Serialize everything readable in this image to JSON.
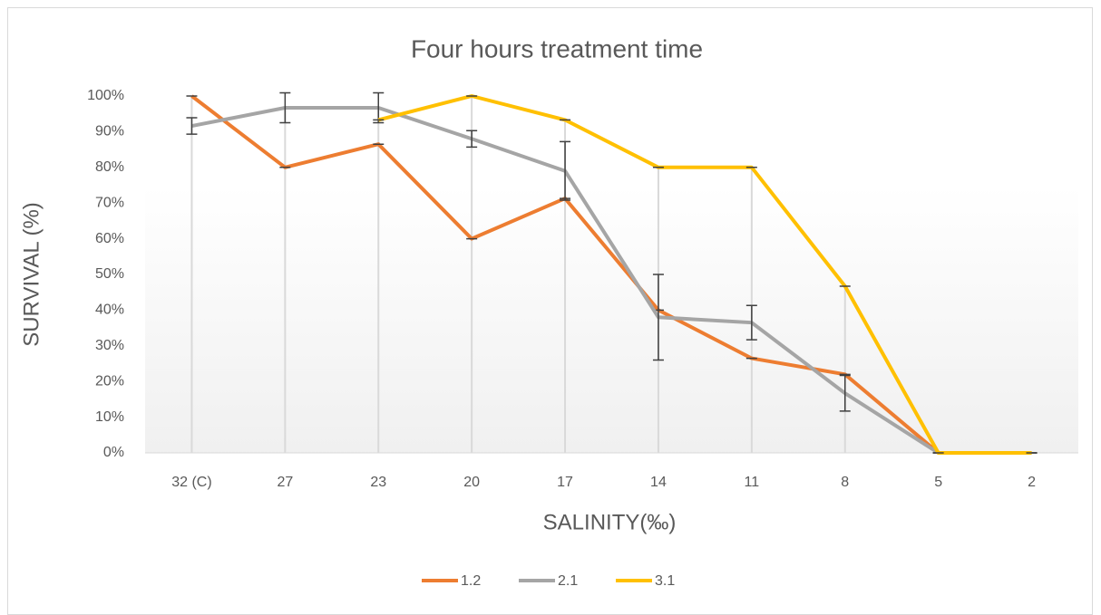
{
  "chart_data": {
    "type": "line",
    "title": "Four hours treatment time",
    "x_label": "SALINITY(‰)",
    "y_label": "SURVIVAL (%)",
    "categories": [
      "32 (C)",
      "27",
      "23",
      "20",
      "17",
      "14",
      "11",
      "8",
      "5",
      "2"
    ],
    "series": [
      {
        "name": "1.2",
        "color": "#ED7D31",
        "values": [
          100,
          80,
          86.5,
          60,
          71.3,
          40,
          26.5,
          22,
          0,
          0
        ],
        "errors": [
          0,
          0,
          0,
          0,
          0,
          0,
          0,
          0,
          0,
          0
        ]
      },
      {
        "name": "2.1",
        "color": "#A5A5A5",
        "values": [
          91.6,
          96.7,
          96.7,
          88,
          79,
          38,
          36.5,
          16.7,
          0,
          0
        ],
        "errors": [
          2.3,
          4.2,
          4.2,
          2.3,
          8.2,
          12,
          4.8,
          5,
          0,
          0
        ]
      },
      {
        "name": "3.1",
        "color": "#FFC000",
        "values": [
          null,
          null,
          93.3,
          100,
          93.3,
          80,
          80,
          46.7,
          0,
          0
        ],
        "errors": [
          null,
          null,
          0,
          0,
          0,
          0,
          0,
          0,
          0,
          0
        ]
      }
    ],
    "ylim": [
      0,
      100
    ],
    "yticks": [
      {
        "value": 0,
        "label": "0%"
      },
      {
        "value": 10,
        "label": "10%"
      },
      {
        "value": 20,
        "label": "20%"
      },
      {
        "value": 30,
        "label": "30%"
      },
      {
        "value": 40,
        "label": "40%"
      },
      {
        "value": 50,
        "label": "50%"
      },
      {
        "value": 60,
        "label": "60%"
      },
      {
        "value": 70,
        "label": "70%"
      },
      {
        "value": 80,
        "label": "80%"
      },
      {
        "value": 90,
        "label": "90%"
      },
      {
        "value": 100,
        "label": "100%"
      }
    ],
    "legend": "bottom"
  }
}
